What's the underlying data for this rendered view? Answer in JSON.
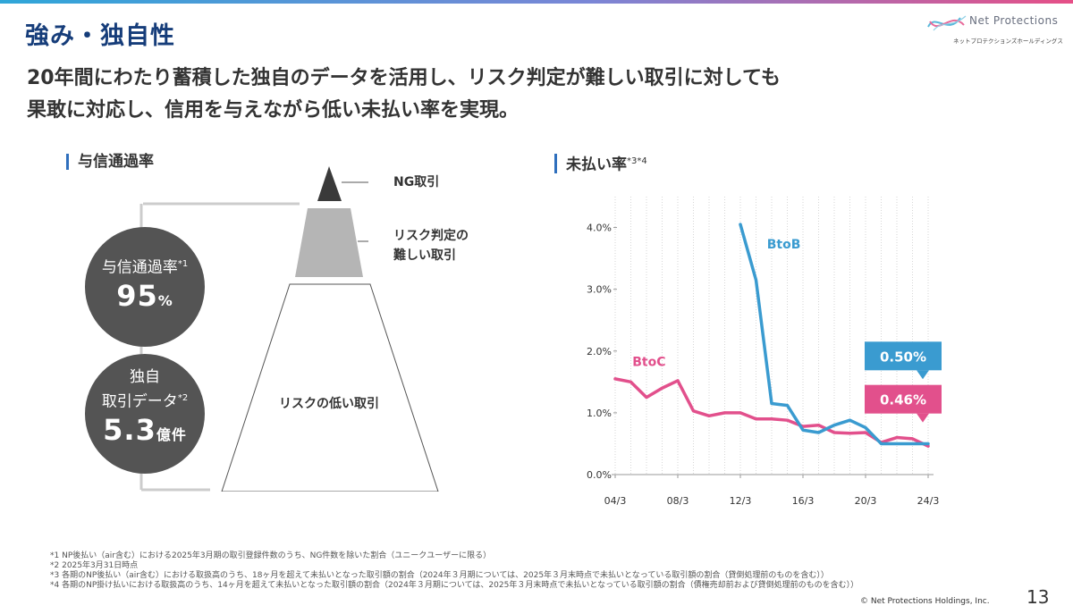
{
  "header": {
    "title": "強み・独自性",
    "logo_name": "Net Protections",
    "logo_sub": "ネットプロテクションズホールディングス"
  },
  "headline": {
    "line1": "20年間にわたり蓄積した独自のデータを活用し、リスク判定が難しい取引に対しても",
    "line2": "果敢に対応し、信用を与えながら低い未払い率を実現。"
  },
  "left": {
    "section_title": "与信通過率",
    "circle1": {
      "label": "与信通過率",
      "note": "*1",
      "value": "95",
      "unit": "%"
    },
    "circle2": {
      "label_line1": "独自",
      "label_line2": "取引データ",
      "note": "*2",
      "value": "5.3",
      "unit": "億件"
    },
    "pyramid": {
      "top_label": "NG取引",
      "middle_label_line1": "リスク判定の",
      "middle_label_line2": "難しい取引",
      "bottom_label": "リスクの低い取引"
    }
  },
  "right": {
    "section_title": "未払い率",
    "section_note": "*3*4"
  },
  "chart_data": {
    "type": "line",
    "title": "未払い率",
    "x_ticks": [
      "04/3",
      "08/3",
      "12/3",
      "16/3",
      "20/3",
      "24/3"
    ],
    "x_range": [
      2004,
      2024
    ],
    "y_ticks": [
      "0.0%",
      "1.0%",
      "2.0%",
      "3.0%",
      "4.0%"
    ],
    "ylim": [
      0,
      4.5
    ],
    "series": [
      {
        "name": "BtoC",
        "color": "#e2508c",
        "x": [
          2004,
          2005,
          2006,
          2007,
          2008,
          2009,
          2010,
          2011,
          2012,
          2013,
          2014,
          2015,
          2016,
          2017,
          2018,
          2019,
          2020,
          2021,
          2022,
          2023,
          2024
        ],
        "values": [
          1.55,
          1.5,
          1.25,
          1.4,
          1.52,
          1.03,
          0.95,
          1.0,
          1.0,
          0.9,
          0.9,
          0.88,
          0.78,
          0.8,
          0.68,
          0.67,
          0.68,
          0.52,
          0.6,
          0.58,
          0.46
        ],
        "end_label": "0.46%"
      },
      {
        "name": "BtoB",
        "color": "#3a9bd0",
        "x": [
          2012,
          2013,
          2014,
          2015,
          2016,
          2017,
          2018,
          2019,
          2020,
          2021,
          2022,
          2023,
          2024
        ],
        "values": [
          4.05,
          3.15,
          1.15,
          1.12,
          0.72,
          0.68,
          0.8,
          0.88,
          0.76,
          0.5,
          0.5,
          0.5,
          0.5
        ],
        "end_label": "0.50%"
      }
    ],
    "grid": "vertical dotted lines",
    "legend": "inline labels"
  },
  "footnotes": [
    "*1 NP後払い（air含む）における2025年3月期の取引登録件数のうち、NG件数を除いた割合（ユニークユーザーに限る）",
    "*2 2025年3月31日時点",
    "*3 各期のNP後払い（air含む）における取扱高のうち、18ヶ月を超えて未払いとなった取引額の割合（2024年３月期については、2025年３月末時点で未払いとなっている取引額の割合（貸倒処理前のものを含む））",
    "*4 各期のNP掛け払いにおける取扱高のうち、14ヶ月を超えて未払いとなった取引額の割合（2024年３月期については、2025年３月末時点で未払いとなっている取引額の割合（債権売却前および貸倒処理前のものを含む））"
  ],
  "footer": {
    "page_number": "13",
    "copyright": "© Net Protections Holdings, Inc."
  }
}
